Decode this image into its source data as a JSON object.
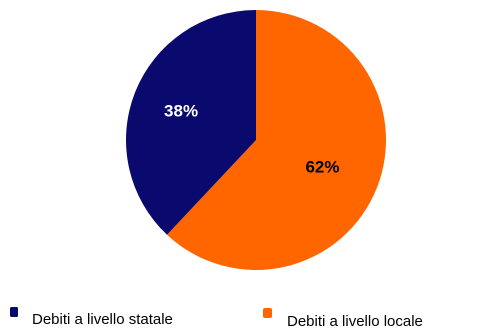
{
  "chart_data": {
    "type": "pie",
    "series": [
      {
        "name": "Debiti a livello statale",
        "value": 38,
        "label": "38%",
        "color": "#0a0a6e",
        "label_color": "#ffffff"
      },
      {
        "name": "Debiti a livello locale",
        "value": 62,
        "label": "62%",
        "color": "#ff6600",
        "label_color": "#000000"
      }
    ],
    "legend": {
      "position": "bottom",
      "items": [
        "Debiti a livello statale",
        "Debiti a livello locale"
      ]
    }
  }
}
